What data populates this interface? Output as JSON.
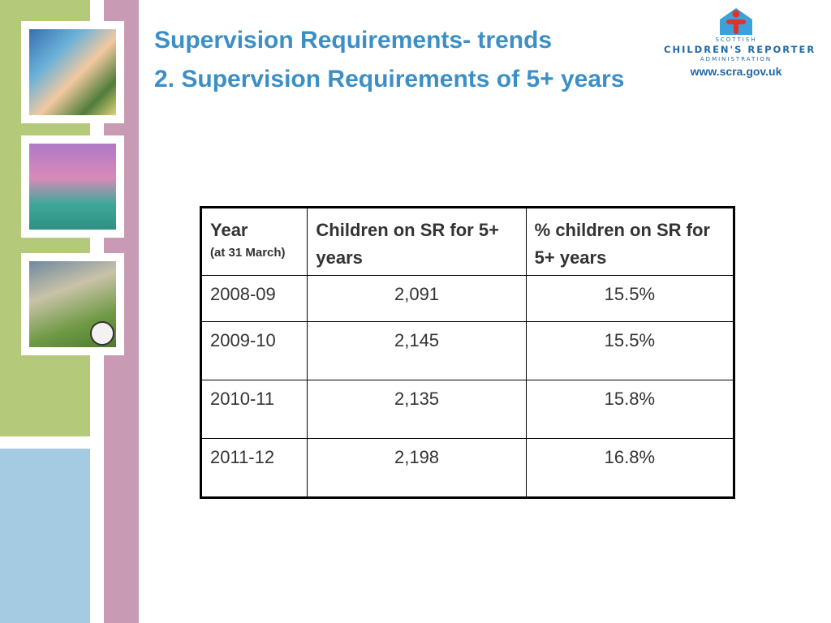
{
  "title": {
    "line1": "Supervision Requirements- trends",
    "line2": "2. Supervision Requirements of 5+ years"
  },
  "logo": {
    "org_small_top": "SCOTTISH",
    "org_main": "CHILDREN'S REPORTER",
    "org_small_bottom": "ADMINISTRATION",
    "url": "www.scra.gov.uk",
    "icon": "jigsaw-house-icon"
  },
  "colors": {
    "title": "#3c8fc6",
    "stripe_green": "#b5c97a",
    "stripe_pink": "#c89ab3",
    "stripe_blue": "#a4cbe2",
    "logo_blue": "#1f6aa8"
  },
  "table": {
    "headers": {
      "year": "Year",
      "year_sub": "(at 31 March)",
      "children": "Children on SR for 5+ years",
      "percent": "% children on SR for 5+ years"
    },
    "rows": [
      {
        "year": "2008-09",
        "children": "2,091",
        "percent": "15.5%"
      },
      {
        "year": "2009-10",
        "children": "2,145",
        "percent": "15.5%"
      },
      {
        "year": "2010-11",
        "children": "2,135",
        "percent": "15.8%"
      },
      {
        "year": "2011-12",
        "children": "2,198",
        "percent": "16.8%"
      }
    ]
  }
}
